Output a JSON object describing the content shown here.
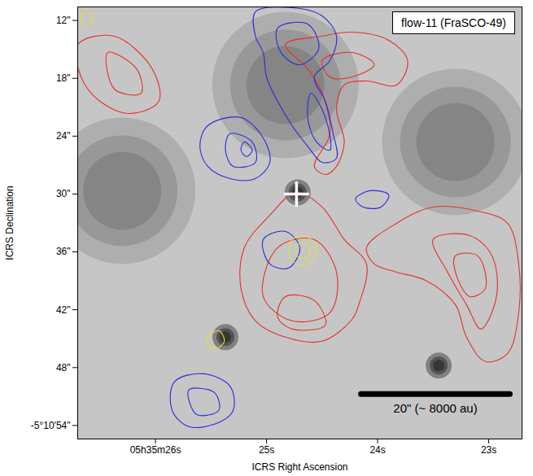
{
  "chart_data": {
    "type": "contour_map",
    "title": "flow-11 (FraSCO-49)",
    "x_label": "ICRS Right Ascension",
    "y_label": "ICRS Declination",
    "xlim": [
      26.7,
      22.7
    ],
    "ylim": [
      55.4,
      10.6
    ],
    "xticks": [
      {
        "value": 26,
        "label": "05h35m26s"
      },
      {
        "value": 25,
        "label": "25s"
      },
      {
        "value": 24,
        "label": "24s"
      },
      {
        "value": 23,
        "label": "23s"
      }
    ],
    "yticks": [
      {
        "value": 12,
        "label": "12\""
      },
      {
        "value": 18,
        "label": "18\""
      },
      {
        "value": 24,
        "label": "24\""
      },
      {
        "value": 30,
        "label": "30\""
      },
      {
        "value": 36,
        "label": "36\""
      },
      {
        "value": 42,
        "label": "42\""
      },
      {
        "value": 48,
        "label": "48\""
      },
      {
        "value": 54,
        "label": "-5°10'54\""
      }
    ],
    "background": {
      "color": "#c6c6c6",
      "sources": [
        {
          "kind": "diffuse",
          "x": 24.83,
          "y": 18.7
        },
        {
          "kind": "diffuse",
          "x": 26.3,
          "y": 29.66
        },
        {
          "kind": "diffuse",
          "x": 23.3,
          "y": 24.6
        },
        {
          "kind": "compact",
          "x": 24.72,
          "y": 29.83
        },
        {
          "kind": "compact",
          "x": 25.37,
          "y": 44.84
        },
        {
          "kind": "compact",
          "x": 23.45,
          "y": 47.79
        }
      ]
    },
    "series": [
      {
        "color": "#e6302a",
        "contours": [
          [
            [
              24.83,
              14.49
            ],
            [
              24.5,
              13.64
            ],
            [
              24.23,
              13.22
            ],
            [
              23.9,
              14.06
            ],
            [
              23.73,
              16.17
            ],
            [
              23.83,
              18.7
            ],
            [
              24.1,
              18.28
            ],
            [
              24.3,
              18.7
            ],
            [
              24.37,
              21.23
            ],
            [
              24.3,
              24.6
            ],
            [
              24.37,
              27.13
            ],
            [
              24.47,
              27.98
            ],
            [
              24.57,
              27.13
            ],
            [
              24.43,
              23.76
            ],
            [
              24.5,
              19.55
            ],
            [
              24.63,
              17.02
            ]
          ],
          [
            [
              24.5,
              16.17
            ],
            [
              24.23,
              15.33
            ],
            [
              24.03,
              16.59
            ],
            [
              24.23,
              17.86
            ],
            [
              24.43,
              17.86
            ]
          ],
          [
            [
              26.7,
              14.49
            ],
            [
              26.37,
              13.64
            ],
            [
              26.03,
              17.02
            ],
            [
              25.97,
              20.39
            ],
            [
              26.23,
              21.65
            ],
            [
              26.5,
              20.39
            ],
            [
              26.67,
              17.86
            ]
          ],
          [
            [
              26.43,
              15.33
            ],
            [
              26.17,
              17.02
            ],
            [
              26.13,
              19.55
            ],
            [
              26.37,
              19.12
            ]
          ],
          [
            [
              24.73,
              29.83
            ],
            [
              24.5,
              31.35
            ],
            [
              24.3,
              34.72
            ],
            [
              24.1,
              37.25
            ],
            [
              24.17,
              41.47
            ],
            [
              24.23,
              43.0
            ],
            [
              24.5,
              45.26
            ],
            [
              24.83,
              44.84
            ],
            [
              25.1,
              43.15
            ],
            [
              25.23,
              39.78
            ],
            [
              25.2,
              35.57
            ],
            [
              24.97,
              32.19
            ]
          ],
          [
            [
              24.9,
              35.57
            ],
            [
              24.57,
              34.72
            ],
            [
              24.37,
              38.1
            ],
            [
              24.43,
              42.31
            ],
            [
              24.77,
              43.15
            ],
            [
              25.03,
              40.63
            ]
          ],
          [
            [
              24.83,
              40.63
            ],
            [
              24.57,
              41.05
            ],
            [
              24.47,
              43.58
            ],
            [
              24.77,
              44.0
            ],
            [
              24.9,
              42.73
            ]
          ],
          [
            [
              24.1,
              35.57
            ],
            [
              23.83,
              33.04
            ],
            [
              23.5,
              31.35
            ],
            [
              23.1,
              31.77
            ],
            [
              22.83,
              33.04
            ],
            [
              22.73,
              37.25
            ],
            [
              22.73,
              42.31
            ],
            [
              22.83,
              46.53
            ],
            [
              23.03,
              47.37
            ],
            [
              23.2,
              44.84
            ],
            [
              23.3,
              41.47
            ],
            [
              23.57,
              38.94
            ],
            [
              23.83,
              38.1
            ],
            [
              24.03,
              37.25
            ]
          ],
          [
            [
              23.5,
              34.72
            ],
            [
              23.17,
              34.3
            ],
            [
              22.97,
              36.41
            ],
            [
              22.93,
              40.63
            ],
            [
              23.07,
              44.0
            ],
            [
              23.2,
              41.47
            ],
            [
              23.37,
              38.1
            ]
          ],
          [
            [
              23.3,
              36.41
            ],
            [
              23.1,
              36.41
            ],
            [
              23.03,
              39.78
            ],
            [
              23.17,
              40.63
            ],
            [
              23.3,
              38.1
            ]
          ]
        ]
      },
      {
        "color": "#2b2bdc",
        "contours": [
          [
            [
              25.1,
              11.11
            ],
            [
              24.77,
              10.69
            ],
            [
              24.5,
              11.53
            ],
            [
              24.37,
              13.64
            ],
            [
              24.43,
              16.17
            ],
            [
              24.57,
              17.86
            ],
            [
              24.47,
              20.39
            ],
            [
              24.4,
              23.76
            ],
            [
              24.37,
              26.29
            ],
            [
              24.5,
              26.71
            ],
            [
              24.63,
              25.03
            ],
            [
              24.77,
              22.92
            ],
            [
              24.9,
              20.39
            ],
            [
              25.0,
              17.86
            ],
            [
              25.03,
              15.33
            ],
            [
              25.1,
              13.64
            ]
          ],
          [
            [
              24.9,
              12.8
            ],
            [
              24.63,
              12.38
            ],
            [
              24.53,
              14.91
            ],
            [
              24.7,
              16.59
            ],
            [
              24.87,
              15.33
            ]
          ],
          [
            [
              24.6,
              19.55
            ],
            [
              24.47,
              22.07
            ],
            [
              24.43,
              25.45
            ],
            [
              24.55,
              24.6
            ],
            [
              24.63,
              22.07
            ]
          ],
          [
            [
              25.53,
              22.92
            ],
            [
              25.23,
              22.07
            ],
            [
              25.03,
              24.18
            ],
            [
              24.97,
              26.71
            ],
            [
              25.1,
              28.4
            ],
            [
              25.33,
              28.4
            ],
            [
              25.53,
              27.13
            ],
            [
              25.6,
              25.03
            ]
          ],
          [
            [
              25.33,
              23.76
            ],
            [
              25.13,
              24.6
            ],
            [
              25.1,
              26.71
            ],
            [
              25.3,
              27.13
            ],
            [
              25.37,
              25.45
            ]
          ],
          [
            [
              25.2,
              24.6
            ],
            [
              25.13,
              25.45
            ],
            [
              25.18,
              26.12
            ],
            [
              25.23,
              25.45
            ]
          ],
          [
            [
              25.83,
              49.48
            ],
            [
              25.57,
              48.64
            ],
            [
              25.33,
              49.9
            ],
            [
              25.3,
              52.43
            ],
            [
              25.43,
              53.69
            ],
            [
              25.7,
              54.12
            ],
            [
              25.85,
              52.43
            ]
          ],
          [
            [
              25.7,
              50.32
            ],
            [
              25.47,
              50.58
            ],
            [
              25.43,
              52.43
            ],
            [
              25.63,
              52.85
            ]
          ],
          [
            [
              24.2,
              30.51
            ],
            [
              24.07,
              29.66
            ],
            [
              23.9,
              30.09
            ],
            [
              23.97,
              31.35
            ],
            [
              24.13,
              31.35
            ]
          ],
          [
            [
              25.03,
              34.72
            ],
            [
              24.83,
              33.88
            ],
            [
              24.7,
              35.57
            ],
            [
              24.8,
              37.67
            ],
            [
              24.97,
              37.25
            ]
          ]
        ]
      },
      {
        "color": "#e6e033",
        "contours": [
          [
            [
              24.77,
              34.72
            ],
            [
              24.63,
              34.47
            ],
            [
              24.55,
              35.57
            ],
            [
              24.6,
              37.08
            ],
            [
              24.73,
              37.25
            ],
            [
              24.8,
              35.99
            ]
          ],
          [
            [
              24.73,
              35.31
            ],
            [
              24.63,
              35.23
            ],
            [
              24.62,
              36.41
            ],
            [
              24.71,
              36.58
            ]
          ],
          [
            [
              25.53,
              44.84
            ],
            [
              25.43,
              44.17
            ],
            [
              25.38,
              45.26
            ],
            [
              25.47,
              46.11
            ],
            [
              25.53,
              45.52
            ]
          ],
          [
            [
              26.67,
              11.28
            ],
            [
              26.6,
              10.94
            ],
            [
              26.57,
              12.12
            ],
            [
              26.65,
              12.38
            ]
          ]
        ]
      }
    ],
    "source_position": {
      "x": 24.73,
      "y": 30.0,
      "marker": "plus",
      "color": "#ffffff"
    },
    "scale_bar": {
      "label": "20\" (~ 8000 au)",
      "x": [
        24.15,
        22.81
      ],
      "y": 50.74
    }
  }
}
